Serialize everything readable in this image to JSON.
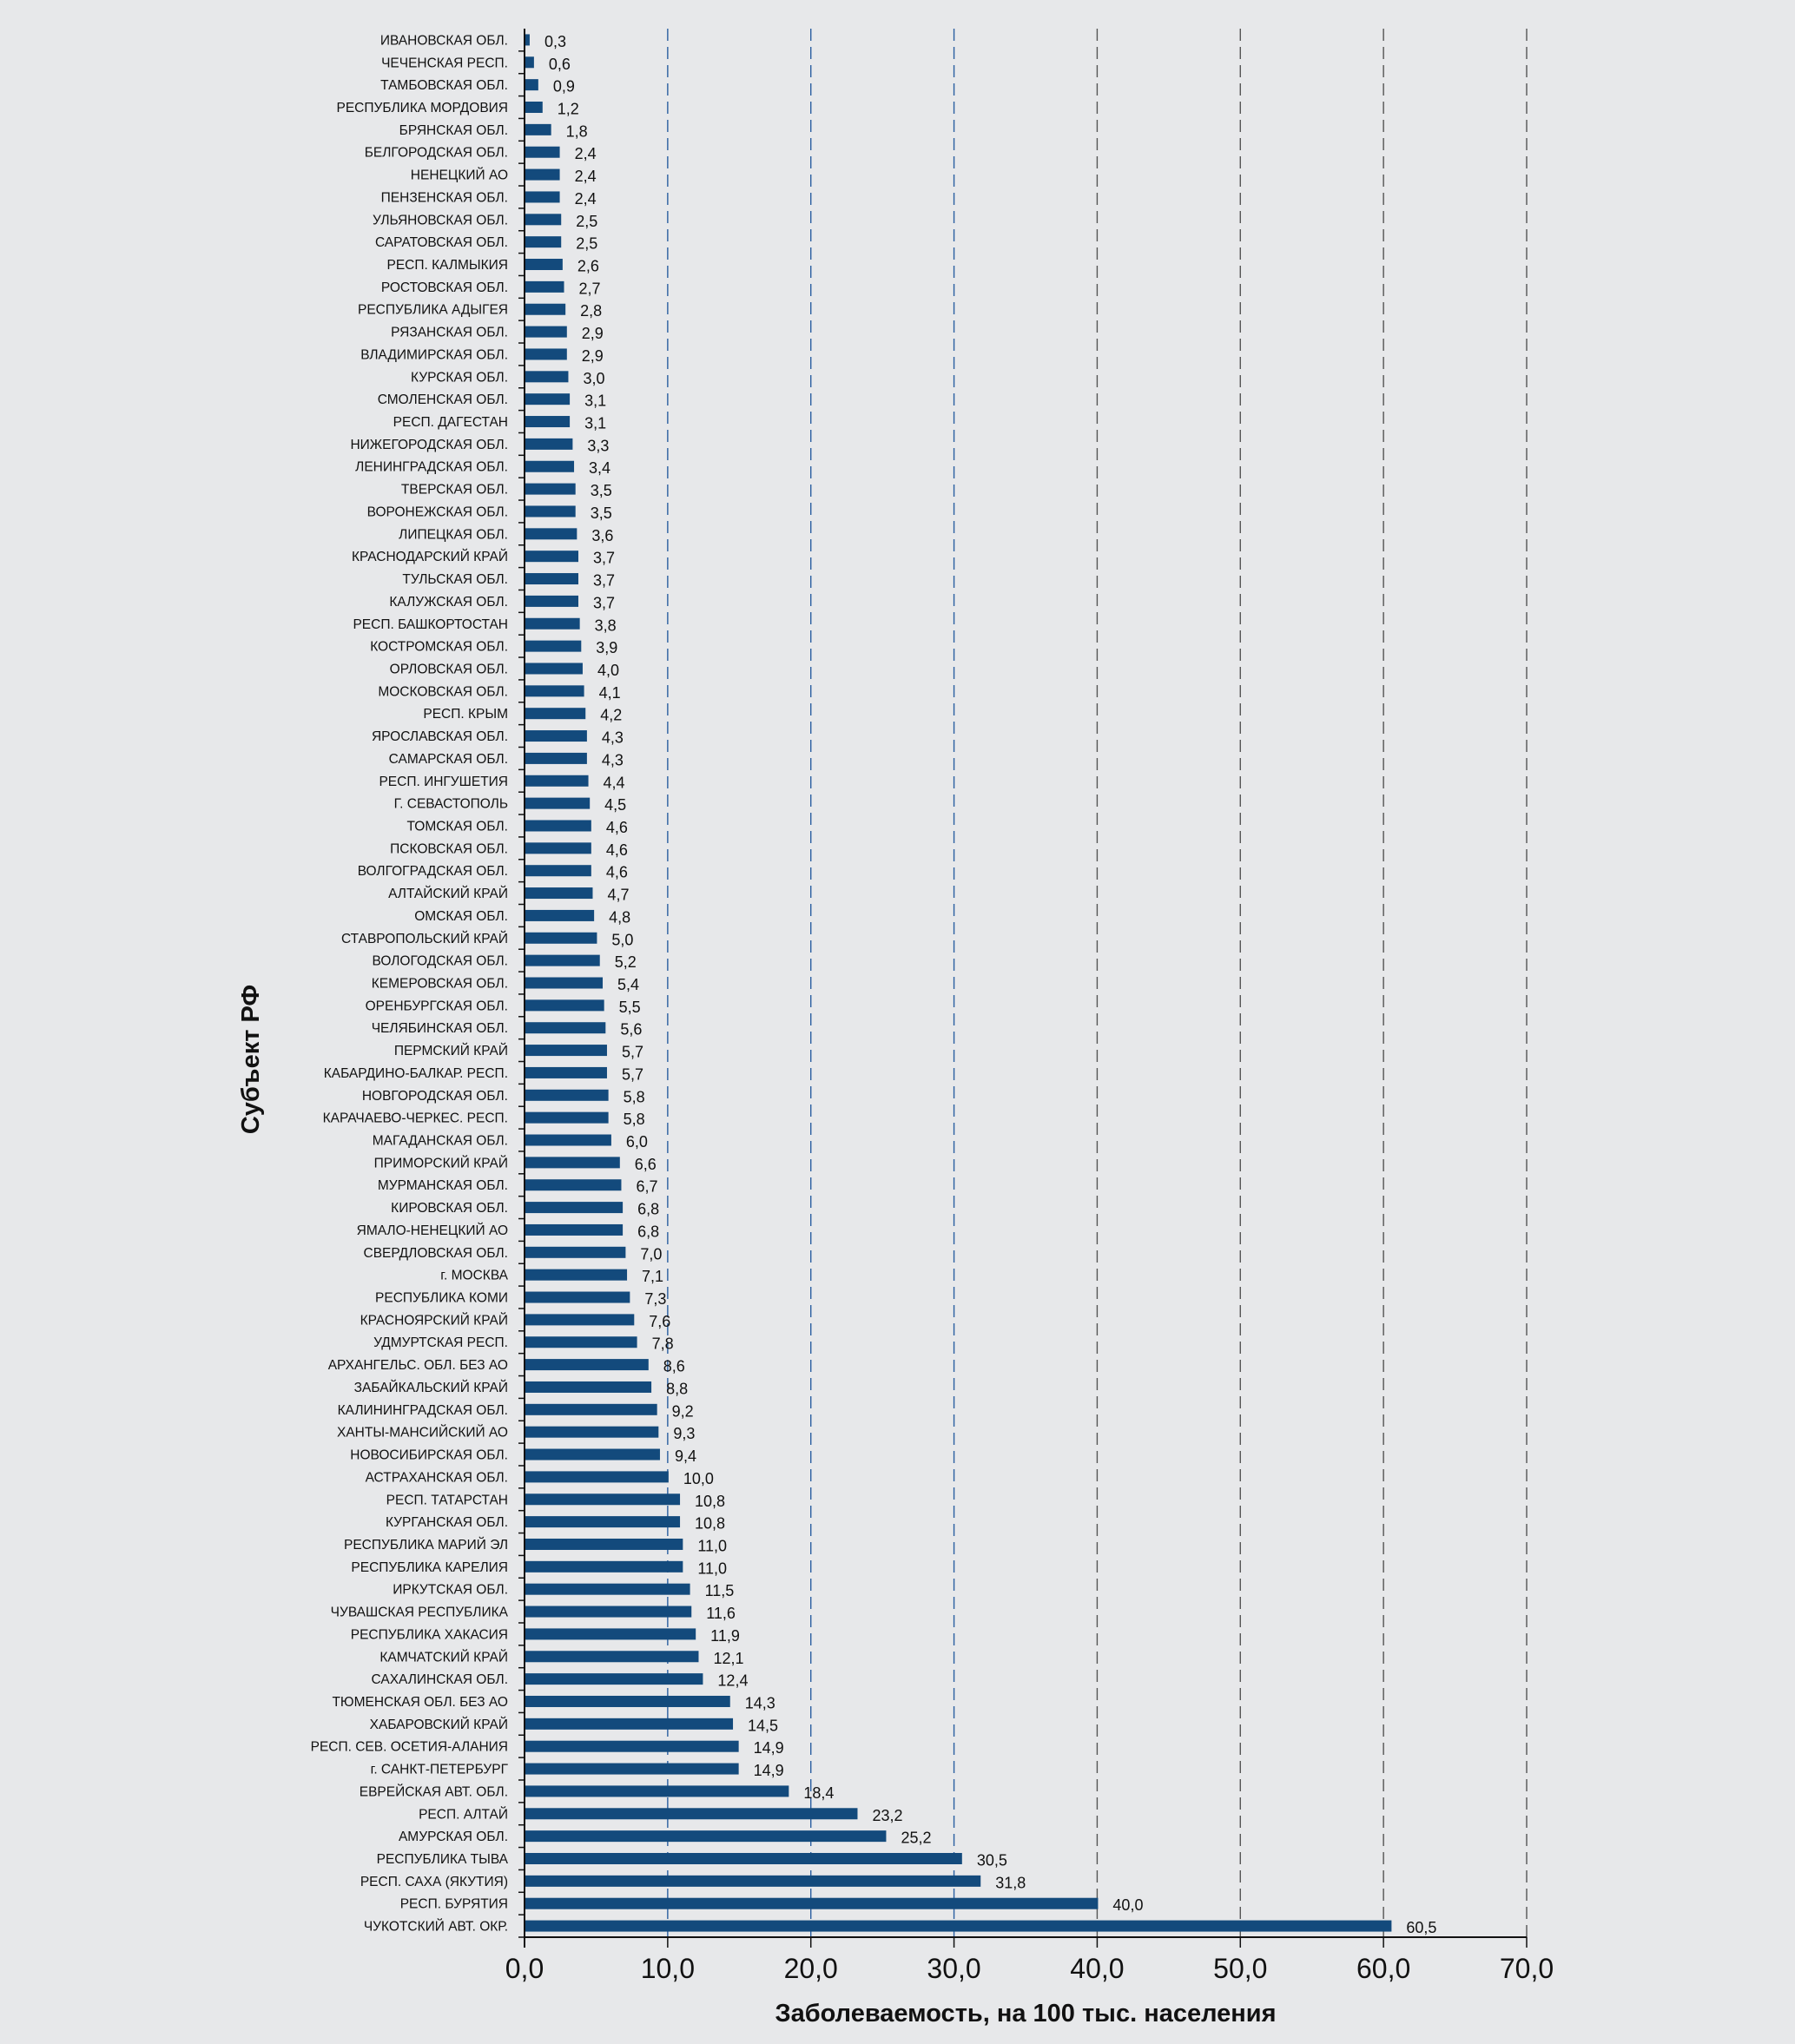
{
  "chart_data": {
    "type": "bar",
    "orientation": "horizontal",
    "title": "",
    "xlabel": "Заболеваемость, на 100 тыс. населения",
    "ylabel": "Субъект РФ",
    "xlim": [
      0,
      70
    ],
    "xticks": [
      0,
      10,
      20,
      30,
      40,
      50,
      60,
      70
    ],
    "xtick_labels": [
      "0,0",
      "10,0",
      "20,0",
      "30,0",
      "40,0",
      "50,0",
      "60,0",
      "70,0"
    ],
    "grid": "vertical dashed",
    "bar_color": "#134a7c",
    "categories": [
      "ИВАНОВСКАЯ ОБЛ.",
      "ЧЕЧЕНСКАЯ РЕСП.",
      "ТАМБОВСКАЯ ОБЛ.",
      "РЕСПУБЛИКА МОРДОВИЯ",
      "БРЯНСКАЯ ОБЛ.",
      "БЕЛГОРОДСКАЯ ОБЛ.",
      "НЕНЕЦКИЙ АО",
      "ПЕНЗЕНСКАЯ ОБЛ.",
      "УЛЬЯНОВСКАЯ ОБЛ.",
      "САРАТОВСКАЯ ОБЛ.",
      "РЕСП. КАЛМЫКИЯ",
      "РОСТОВСКАЯ ОБЛ.",
      "РЕСПУБЛИКА АДЫГЕЯ",
      "РЯЗАНСКАЯ ОБЛ.",
      "ВЛАДИМИРСКАЯ ОБЛ.",
      "КУРСКАЯ ОБЛ.",
      "СМОЛЕНСКАЯ ОБЛ.",
      "РЕСП. ДАГЕСТАН",
      "НИЖЕГОРОДСКАЯ ОБЛ.",
      "ЛЕНИНГРАДСКАЯ ОБЛ.",
      "ТВЕРСКАЯ ОБЛ.",
      "ВОРОНЕЖСКАЯ ОБЛ.",
      "ЛИПЕЦКАЯ ОБЛ.",
      "КРАСНОДАРСКИЙ КРАЙ",
      "ТУЛЬСКАЯ ОБЛ.",
      "КАЛУЖСКАЯ ОБЛ.",
      "РЕСП. БАШКОРТОСТАН",
      "КОСТРОМСКАЯ ОБЛ.",
      "ОРЛОВСКАЯ ОБЛ.",
      "МОСКОВСКАЯ ОБЛ.",
      "РЕСП. КРЫМ",
      "ЯРОСЛАВСКАЯ ОБЛ.",
      "САМАРСКАЯ ОБЛ.",
      "РЕСП. ИНГУШЕТИЯ",
      "Г. СЕВАСТОПОЛЬ",
      "ТОМСКАЯ ОБЛ.",
      "ПСКОВСКАЯ ОБЛ.",
      "ВОЛГОГРАДСКАЯ ОБЛ.",
      "АЛТАЙСКИЙ КРАЙ",
      "ОМСКАЯ ОБЛ.",
      "СТАВРОПОЛЬСКИЙ КРАЙ",
      "ВОЛОГОДСКАЯ ОБЛ.",
      "КЕМЕРОВСКАЯ ОБЛ.",
      "ОРЕНБУРГСКАЯ ОБЛ.",
      "ЧЕЛЯБИНСКАЯ ОБЛ.",
      "ПЕРМСКИЙ КРАЙ",
      "КАБАРДИНО-БАЛКАР. РЕСП.",
      "НОВГОРОДСКАЯ ОБЛ.",
      "КАРАЧАЕВО-ЧЕРКЕС. РЕСП.",
      "МАГАДАНСКАЯ ОБЛ.",
      "ПРИМОРСКИЙ КРАЙ",
      "МУРМАНСКАЯ ОБЛ.",
      "КИРОВСКАЯ ОБЛ.",
      "ЯМАЛО-НЕНЕЦКИЙ АО",
      "СВЕРДЛОВСКАЯ ОБЛ.",
      "г. МОСКВА",
      "РЕСПУБЛИКА КОМИ",
      "КРАСНОЯРСКИЙ КРАЙ",
      "УДМУРТСКАЯ РЕСП.",
      "АРХАНГЕЛЬС. ОБЛ. БЕЗ АО",
      "ЗАБАЙКАЛЬСКИЙ КРАЙ",
      "КАЛИНИНГРАДСКАЯ ОБЛ.",
      "ХАНТЫ-МАНСИЙСКИЙ АО",
      "НОВОСИБИРСКАЯ ОБЛ.",
      "АСТРАХАНСКАЯ ОБЛ.",
      "РЕСП. ТАТАРСТАН",
      "КУРГАНСКАЯ ОБЛ.",
      "РЕСПУБЛИКА МАРИЙ ЭЛ",
      "РЕСПУБЛИКА КАРЕЛИЯ",
      "ИРКУТСКАЯ ОБЛ.",
      "ЧУВАШСКАЯ РЕСПУБЛИКА",
      "РЕСПУБЛИКА ХАКАСИЯ",
      "КАМЧАТСКИЙ КРАЙ",
      "САХАЛИНСКАЯ ОБЛ.",
      "ТЮМЕНСКАЯ ОБЛ. БЕЗ АО",
      "ХАБАРОВСКИЙ КРАЙ",
      "РЕСП. СЕВ. ОСЕТИЯ-АЛАНИЯ",
      "г. САНКТ-ПЕТЕРБУРГ",
      "ЕВРЕЙСКАЯ АВТ. ОБЛ.",
      "РЕСП. АЛТАЙ",
      "АМУРСКАЯ ОБЛ.",
      "РЕСПУБЛИКА ТЫВА",
      "РЕСП. САХА (ЯКУТИЯ)",
      "РЕСП. БУРЯТИЯ",
      "ЧУКОТСКИЙ АВТ. ОКР."
    ],
    "values": [
      0.3,
      0.6,
      0.9,
      1.2,
      1.8,
      2.4,
      2.4,
      2.4,
      2.5,
      2.5,
      2.6,
      2.7,
      2.8,
      2.9,
      2.9,
      3.0,
      3.1,
      3.1,
      3.3,
      3.4,
      3.5,
      3.5,
      3.6,
      3.7,
      3.7,
      3.7,
      3.8,
      3.9,
      4.0,
      4.1,
      4.2,
      4.3,
      4.3,
      4.4,
      4.5,
      4.6,
      4.6,
      4.6,
      4.7,
      4.8,
      5.0,
      5.2,
      5.4,
      5.5,
      5.6,
      5.7,
      5.7,
      5.8,
      5.8,
      6.0,
      6.6,
      6.7,
      6.8,
      6.8,
      7.0,
      7.1,
      7.3,
      7.6,
      7.8,
      8.6,
      8.8,
      9.2,
      9.3,
      9.4,
      10.0,
      10.8,
      10.8,
      11.0,
      11.0,
      11.5,
      11.6,
      11.9,
      12.1,
      12.4,
      14.3,
      14.5,
      14.9,
      14.9,
      18.4,
      23.2,
      25.2,
      30.5,
      31.8,
      40.0,
      60.5
    ]
  }
}
